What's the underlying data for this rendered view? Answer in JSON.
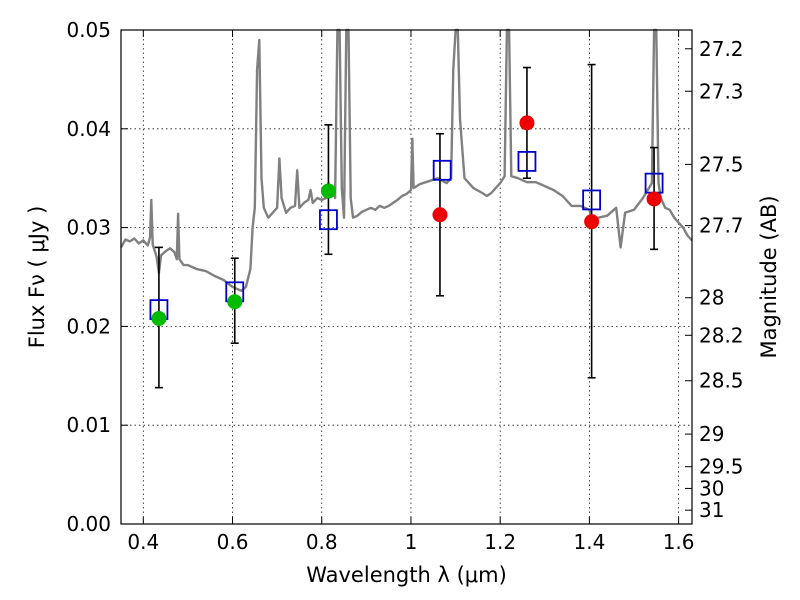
{
  "chart_data": {
    "type": "scatter",
    "xlabel": "Wavelength  λ (μm)",
    "ylabel": "Flux  Fν  ( μJy )",
    "ylabel_right": "Magnitude (AB)",
    "xlim": [
      0.35,
      1.63
    ],
    "ylim": [
      0.0,
      0.05
    ],
    "grid": true,
    "x_ticks": [
      0.4,
      0.6,
      0.8,
      1.0,
      1.2,
      1.4,
      1.6
    ],
    "x_tick_labels": [
      "0.4",
      "0.6",
      "0.8",
      "1",
      "1.2",
      "1.4",
      "1.6"
    ],
    "y_ticks": [
      0.0,
      0.01,
      0.02,
      0.03,
      0.04,
      0.05
    ],
    "y_tick_labels": [
      "0.00",
      "0.01",
      "0.02",
      "0.03",
      "0.04",
      "0.05"
    ],
    "right_ticks": [
      {
        "label": "27.2",
        "flux": 0.0481
      },
      {
        "label": "27.3",
        "flux": 0.0438
      },
      {
        "label": "27.5",
        "flux": 0.0364
      },
      {
        "label": "27.7",
        "flux": 0.0302
      },
      {
        "label": "28",
        "flux": 0.0229
      },
      {
        "label": "28.2",
        "flux": 0.0191
      },
      {
        "label": "28.5",
        "flux": 0.0145
      },
      {
        "label": "29",
        "flux": 0.0091
      },
      {
        "label": "29.5",
        "flux": 0.0058
      },
      {
        "label": "30",
        "flux": 0.0036
      },
      {
        "label": "31",
        "flux": 0.0014
      }
    ],
    "series": [
      {
        "kind": "model_spectrum",
        "color": "#808080",
        "points": [
          [
            0.35,
            0.028
          ],
          [
            0.36,
            0.0288
          ],
          [
            0.37,
            0.0286
          ],
          [
            0.38,
            0.0289
          ],
          [
            0.39,
            0.0284
          ],
          [
            0.4,
            0.0287
          ],
          [
            0.41,
            0.0282
          ],
          [
            0.415,
            0.029
          ],
          [
            0.418,
            0.0328
          ],
          [
            0.421,
            0.0283
          ],
          [
            0.43,
            0.027
          ],
          [
            0.435,
            0.0254
          ],
          [
            0.44,
            0.0272
          ],
          [
            0.45,
            0.0276
          ],
          [
            0.46,
            0.0279
          ],
          [
            0.47,
            0.0275
          ],
          [
            0.475,
            0.0268
          ],
          [
            0.478,
            0.0314
          ],
          [
            0.481,
            0.0268
          ],
          [
            0.49,
            0.0262
          ],
          [
            0.5,
            0.0262
          ],
          [
            0.52,
            0.0258
          ],
          [
            0.54,
            0.0256
          ],
          [
            0.56,
            0.0251
          ],
          [
            0.58,
            0.0247
          ],
          [
            0.6,
            0.024
          ],
          [
            0.62,
            0.0236
          ],
          [
            0.63,
            0.024
          ],
          [
            0.64,
            0.0258
          ],
          [
            0.645,
            0.03
          ],
          [
            0.65,
            0.032
          ],
          [
            0.655,
            0.046
          ],
          [
            0.66,
            0.049
          ],
          [
            0.665,
            0.035
          ],
          [
            0.67,
            0.032
          ],
          [
            0.68,
            0.031
          ],
          [
            0.69,
            0.0315
          ],
          [
            0.7,
            0.032
          ],
          [
            0.705,
            0.037
          ],
          [
            0.71,
            0.033
          ],
          [
            0.72,
            0.0315
          ],
          [
            0.73,
            0.032
          ],
          [
            0.74,
            0.0322
          ],
          [
            0.745,
            0.0358
          ],
          [
            0.75,
            0.032
          ],
          [
            0.76,
            0.0325
          ],
          [
            0.77,
            0.0328
          ],
          [
            0.775,
            0.0338
          ],
          [
            0.78,
            0.0325
          ],
          [
            0.79,
            0.033
          ],
          [
            0.8,
            0.0328
          ],
          [
            0.81,
            0.033
          ],
          [
            0.815,
            0.0345
          ],
          [
            0.82,
            0.0335
          ],
          [
            0.825,
            0.034
          ],
          [
            0.83,
            0.033
          ],
          [
            0.835,
            0.05
          ],
          [
            0.84,
            0.05
          ],
          [
            0.845,
            0.034
          ],
          [
            0.85,
            0.031
          ],
          [
            0.855,
            0.05
          ],
          [
            0.86,
            0.05
          ],
          [
            0.865,
            0.033
          ],
          [
            0.87,
            0.031
          ],
          [
            0.88,
            0.0312
          ],
          [
            0.89,
            0.0316
          ],
          [
            0.9,
            0.0318
          ],
          [
            0.91,
            0.032
          ],
          [
            0.92,
            0.0318
          ],
          [
            0.93,
            0.0322
          ],
          [
            0.94,
            0.032
          ],
          [
            0.95,
            0.0322
          ],
          [
            0.96,
            0.0325
          ],
          [
            0.97,
            0.0328
          ],
          [
            0.98,
            0.0332
          ],
          [
            0.99,
            0.0334
          ],
          [
            1.0,
            0.0338
          ],
          [
            1.003,
            0.039
          ],
          [
            1.006,
            0.034
          ],
          [
            1.02,
            0.0344
          ],
          [
            1.04,
            0.0347
          ],
          [
            1.06,
            0.035
          ],
          [
            1.08,
            0.0345
          ],
          [
            1.09,
            0.035
          ],
          [
            1.095,
            0.046
          ],
          [
            1.1,
            0.05
          ],
          [
            1.105,
            0.05
          ],
          [
            1.11,
            0.041
          ],
          [
            1.12,
            0.035
          ],
          [
            1.14,
            0.034
          ],
          [
            1.16,
            0.0335
          ],
          [
            1.17,
            0.0332
          ],
          [
            1.18,
            0.0335
          ],
          [
            1.19,
            0.034
          ],
          [
            1.2,
            0.0345
          ],
          [
            1.21,
            0.0352
          ],
          [
            1.215,
            0.05
          ],
          [
            1.22,
            0.05
          ],
          [
            1.225,
            0.0352
          ],
          [
            1.24,
            0.035
          ],
          [
            1.26,
            0.0346
          ],
          [
            1.28,
            0.0346
          ],
          [
            1.3,
            0.0342
          ],
          [
            1.32,
            0.0338
          ],
          [
            1.34,
            0.0332
          ],
          [
            1.36,
            0.0322
          ],
          [
            1.38,
            0.0322
          ],
          [
            1.4,
            0.0318
          ],
          [
            1.41,
            0.03
          ],
          [
            1.42,
            0.031
          ],
          [
            1.44,
            0.0312
          ],
          [
            1.46,
            0.032
          ],
          [
            1.47,
            0.028
          ],
          [
            1.48,
            0.0315
          ],
          [
            1.5,
            0.0318
          ],
          [
            1.52,
            0.033
          ],
          [
            1.54,
            0.0345
          ],
          [
            1.545,
            0.05
          ],
          [
            1.55,
            0.05
          ],
          [
            1.555,
            0.0345
          ],
          [
            1.56,
            0.033
          ],
          [
            1.57,
            0.032
          ],
          [
            1.58,
            0.0318
          ],
          [
            1.59,
            0.031
          ],
          [
            1.6,
            0.0305
          ],
          [
            1.61,
            0.03
          ],
          [
            1.62,
            0.0292
          ],
          [
            1.63,
            0.0287
          ]
        ]
      },
      {
        "kind": "model_photometry",
        "marker": "open-square",
        "color": "#0000cc",
        "x": [
          0.435,
          0.605,
          0.815,
          1.07,
          1.26,
          1.405,
          1.545
        ],
        "y": [
          0.0217,
          0.0235,
          0.0308,
          0.0358,
          0.0367,
          0.0328,
          0.0345
        ]
      },
      {
        "kind": "observed",
        "marker": "filled-circle",
        "x": [
          0.435,
          0.605,
          0.815,
          1.065,
          1.26,
          1.405,
          1.545
        ],
        "y": [
          0.0208,
          0.0225,
          0.0337,
          0.0313,
          0.0406,
          0.0306,
          0.0329
        ],
        "yerr_low": [
          0.0138,
          0.0183,
          0.0273,
          0.0231,
          0.035,
          0.0148,
          0.0278
        ],
        "yerr_high": [
          0.028,
          0.0269,
          0.0404,
          0.0395,
          0.0462,
          0.0465,
          0.0381
        ],
        "colors": [
          "#00bb00",
          "#00bb00",
          "#00bb00",
          "#ee0000",
          "#ee0000",
          "#ee0000",
          "#ee0000"
        ]
      }
    ]
  }
}
